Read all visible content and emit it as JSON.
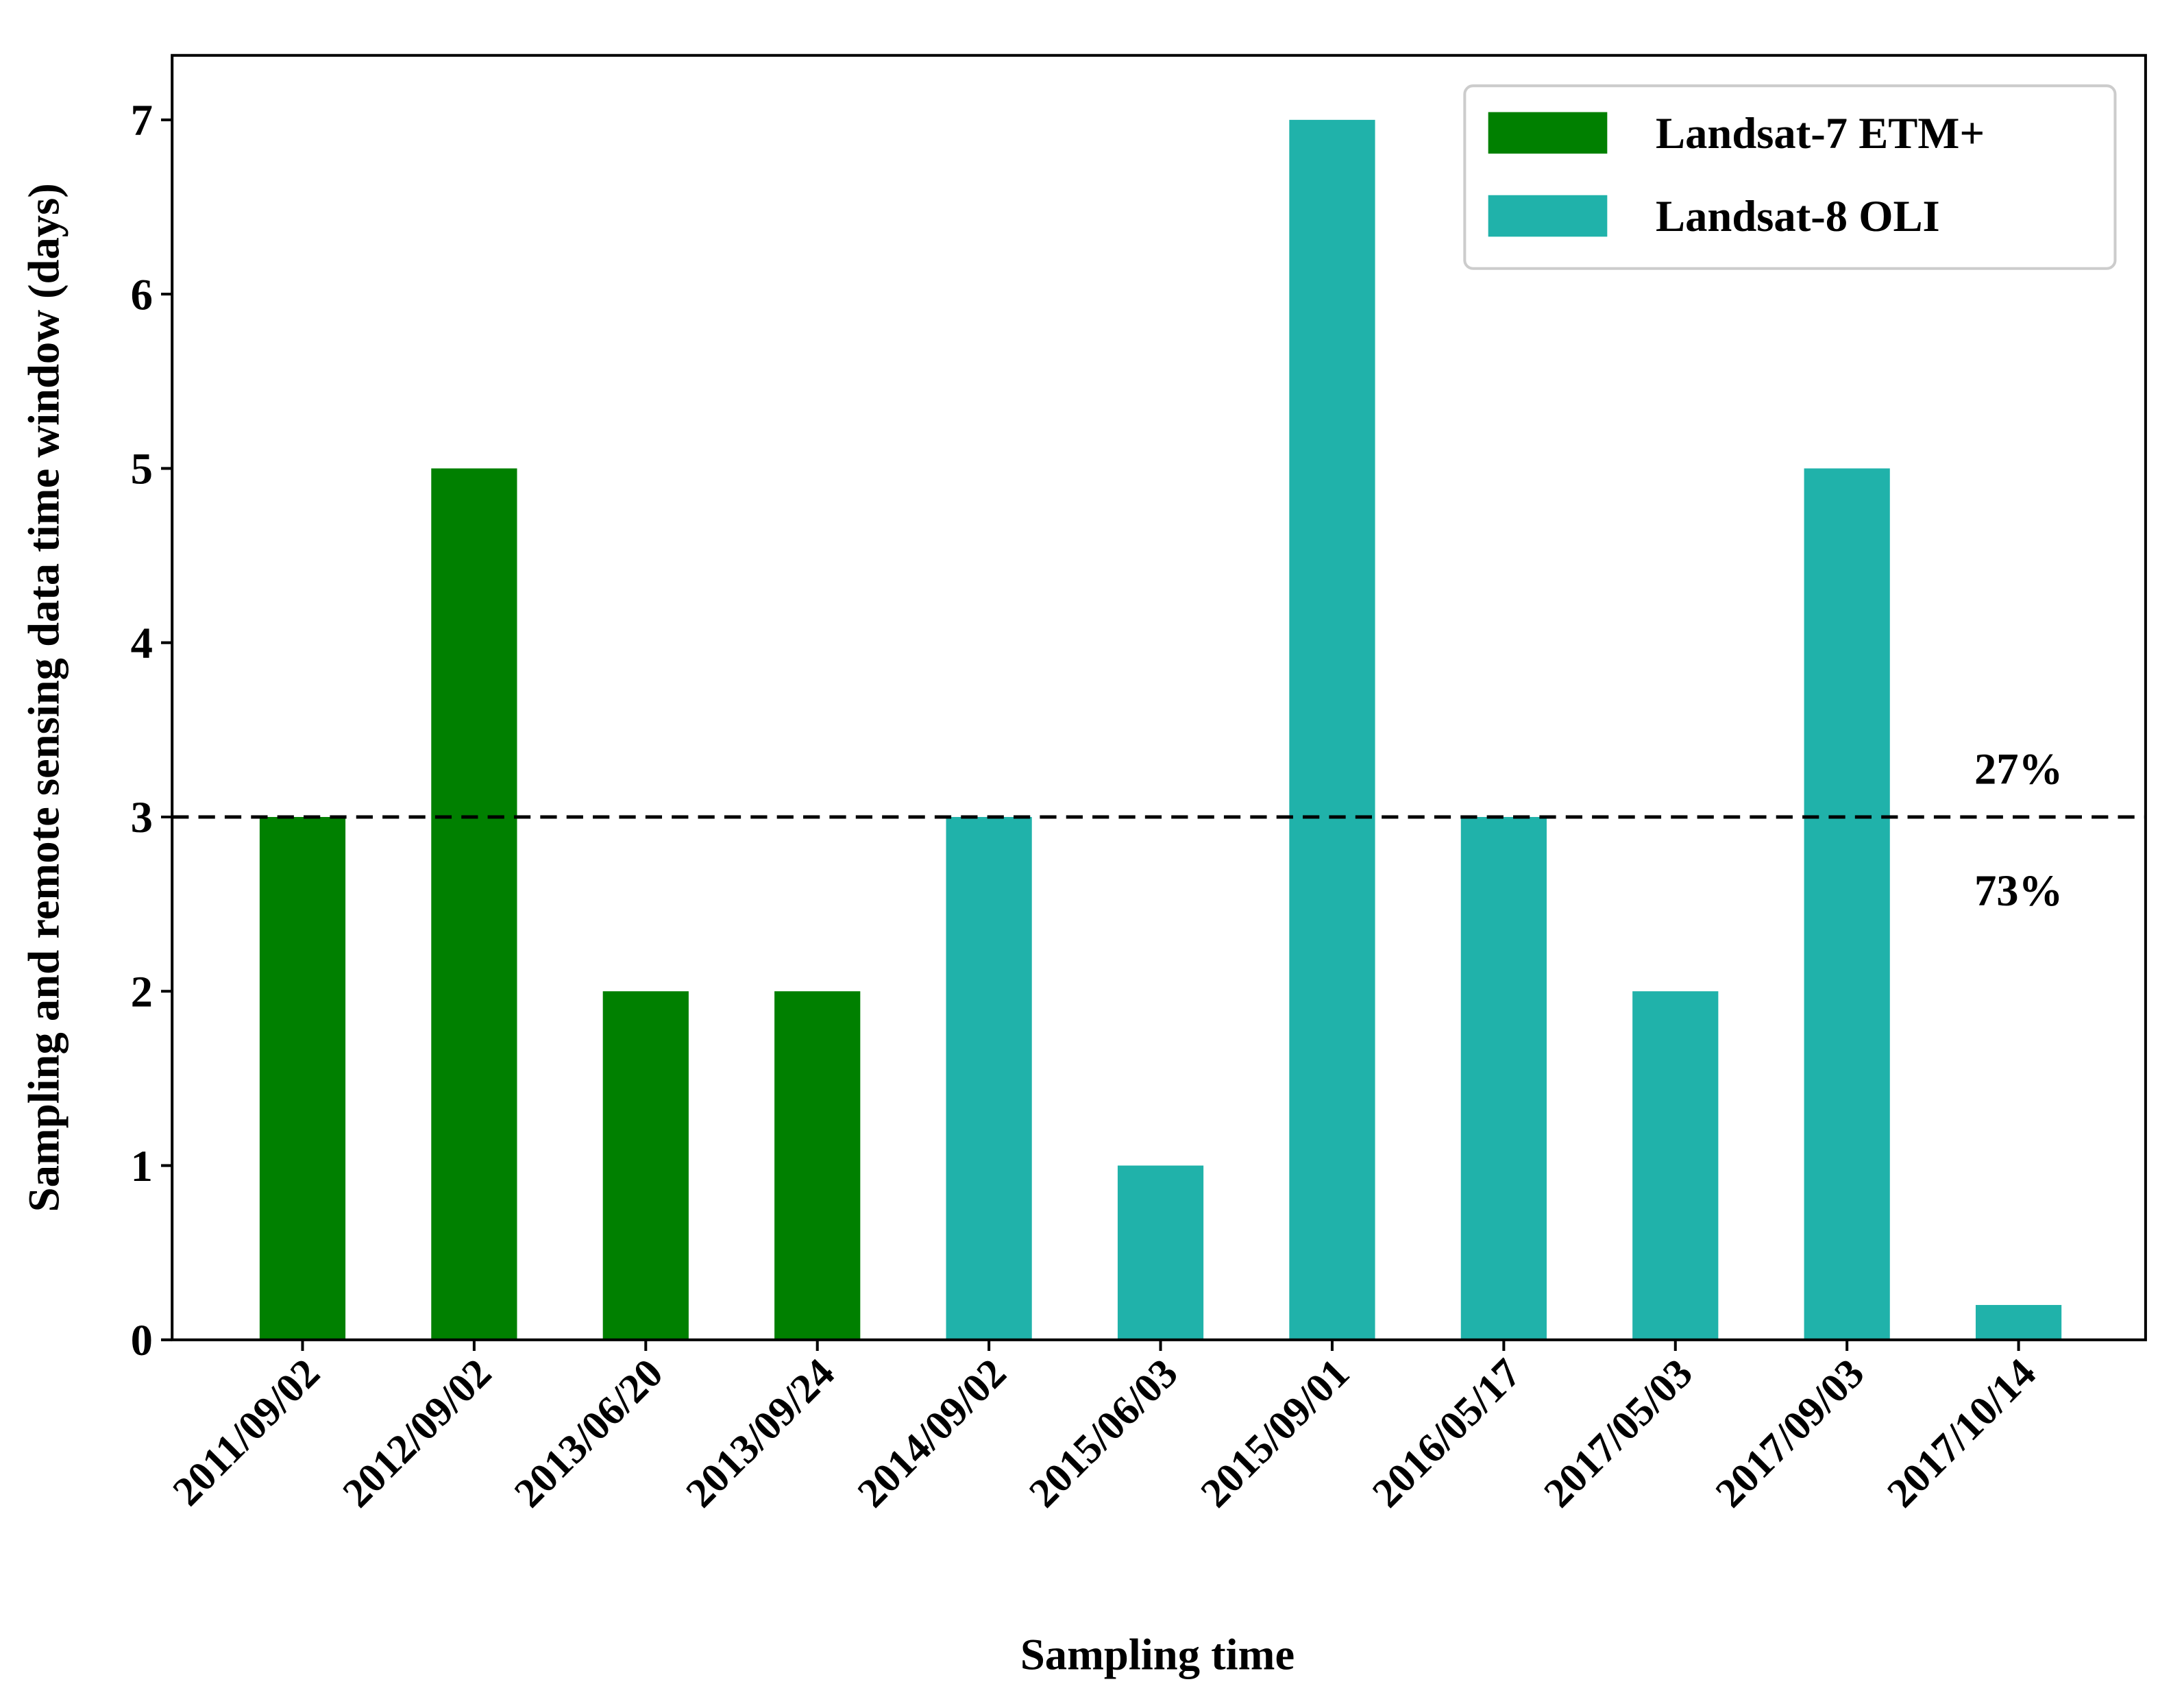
{
  "chart_data": {
    "type": "bar",
    "xlabel": "Sampling time",
    "ylabel": "Sampling and remote sensing data time window (days)",
    "categories": [
      "2011/09/02",
      "2012/09/02",
      "2013/06/20",
      "2013/09/24",
      "2014/09/02",
      "2015/06/03",
      "2015/09/01",
      "2016/05/17",
      "2017/05/03",
      "2017/09/03",
      "2017/10/14"
    ],
    "series": [
      {
        "name": "Landsat-7 ETM+",
        "color": "#008000",
        "values": [
          3,
          5,
          2,
          2,
          null,
          null,
          null,
          null,
          null,
          null,
          null
        ]
      },
      {
        "name": "Landsat-8 OLI",
        "color": "#20b2aa",
        "values": [
          null,
          null,
          null,
          null,
          3,
          1,
          7,
          3,
          2,
          5,
          0.2
        ]
      }
    ],
    "ylim": [
      0,
      7.37
    ],
    "yticks": [
      0,
      1,
      2,
      3,
      4,
      5,
      6,
      7
    ],
    "hline": 3,
    "annotations": [
      "27%",
      "73%"
    ],
    "legend": "upper right"
  }
}
